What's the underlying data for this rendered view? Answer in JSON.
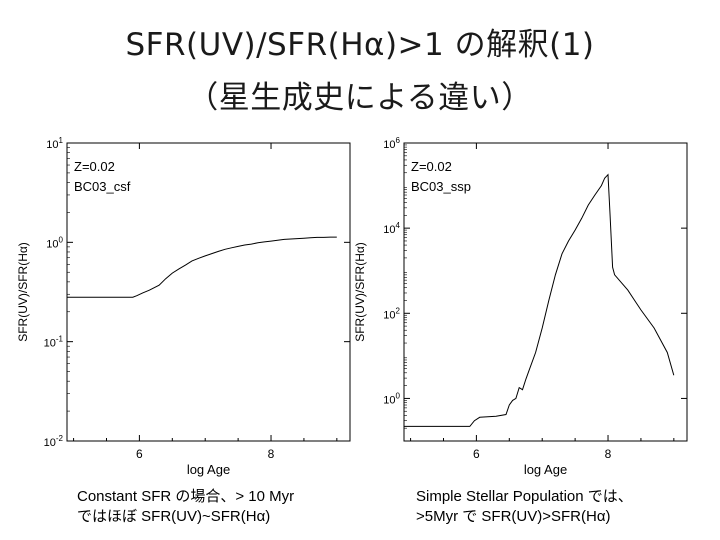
{
  "slide": {
    "title_line1": "SFR(UV)/SFR(Hα)>1 の解釈(1)",
    "title_line2": "（星生成史による違い）",
    "caption_left": [
      "Constant SFR の場合、> 10 Myr",
      "ではほぼ SFR(UV)~SFR(Hα)"
    ],
    "caption_right": [
      "Simple Stellar Population では、",
      ">5Myr で SFR(UV)>SFR(Hα)"
    ]
  },
  "chart_data": [
    {
      "type": "line",
      "annotations": [
        "Z=0.02",
        "BC03_csf"
      ],
      "xlabel": "log Age",
      "ylabel": "SFR(UV)/SFR(Hα)",
      "xlim": [
        4.9,
        9.2
      ],
      "ylim_log10": [
        -2,
        1
      ],
      "log_y": true,
      "x_ticks": [
        6,
        8
      ],
      "y_ticks": [
        "10^-2",
        "10^-1",
        "10^0",
        "10^1"
      ],
      "series": [
        {
          "x": [
            4.9,
            5.0,
            5.5,
            5.9,
            5.96,
            6.05,
            6.15,
            6.3,
            6.4,
            6.5,
            6.6,
            6.7,
            6.8,
            6.9,
            7.0,
            7.1,
            7.2,
            7.3,
            7.4,
            7.5,
            7.6,
            7.7,
            7.8,
            7.9,
            8.0,
            8.1,
            8.2,
            8.3,
            8.4,
            8.5,
            8.6,
            8.7,
            8.8,
            8.9,
            9.0
          ],
          "y": [
            0.28,
            0.28,
            0.28,
            0.28,
            0.29,
            0.31,
            0.33,
            0.37,
            0.43,
            0.49,
            0.54,
            0.59,
            0.65,
            0.69,
            0.73,
            0.77,
            0.81,
            0.85,
            0.88,
            0.91,
            0.94,
            0.96,
            0.99,
            1.01,
            1.03,
            1.05,
            1.07,
            1.08,
            1.09,
            1.1,
            1.11,
            1.12,
            1.12,
            1.13,
            1.13
          ]
        }
      ]
    },
    {
      "type": "line",
      "annotations": [
        "Z=0.02",
        "BC03_ssp"
      ],
      "xlabel": "log Age",
      "ylabel": "SFR(UV)/SFR(Hα)",
      "xlim": [
        4.9,
        9.2
      ],
      "ylim_log10": [
        -1,
        6
      ],
      "log_y": true,
      "x_ticks": [
        6,
        8
      ],
      "y_ticks": [
        "10^0",
        "10^2",
        "10^4",
        "10^6"
      ],
      "series": [
        {
          "x": [
            4.9,
            5.5,
            5.9,
            5.97,
            6.05,
            6.3,
            6.45,
            6.5,
            6.55,
            6.6,
            6.65,
            6.7,
            6.75,
            6.8,
            6.9,
            7.0,
            7.1,
            7.2,
            7.3,
            7.4,
            7.5,
            7.6,
            7.7,
            7.8,
            7.9,
            7.95,
            8.0,
            8.03,
            8.07,
            8.1,
            8.3,
            8.5,
            8.7,
            8.9,
            9.0
          ],
          "y": [
            0.22,
            0.22,
            0.22,
            0.3,
            0.36,
            0.38,
            0.42,
            0.7,
            0.9,
            1.0,
            1.8,
            1.6,
            2.8,
            4.5,
            12,
            45,
            200,
            800,
            2500,
            5000,
            9000,
            17000,
            35000,
            60000,
            100000,
            150000,
            180000,
            22000,
            1200,
            800,
            350,
            120,
            45,
            12,
            3.5
          ]
        }
      ]
    }
  ]
}
